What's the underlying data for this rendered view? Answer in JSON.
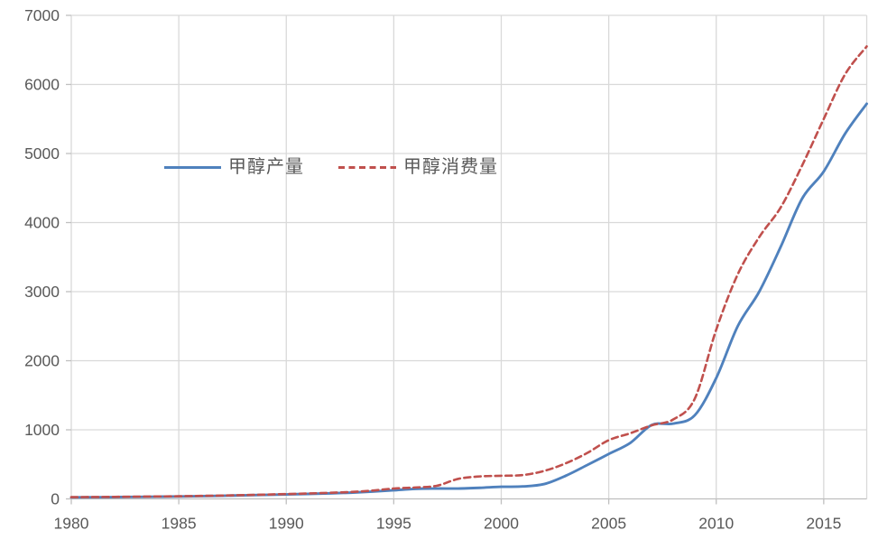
{
  "chart_data": {
    "type": "line",
    "title": "",
    "xlabel": "",
    "ylabel": "",
    "xlim": [
      1980,
      2017
    ],
    "ylim": [
      0,
      7000
    ],
    "grid": true,
    "legend_position": "inside-top-left",
    "x_tick_years": [
      1980,
      1985,
      1990,
      1995,
      2000,
      2005,
      2010,
      2015
    ],
    "x_tick_labels": [
      "1980",
      "1985",
      "1990",
      "1995",
      "2000",
      "2005",
      "2010",
      "2015"
    ],
    "y_ticks": [
      0,
      1000,
      2000,
      3000,
      4000,
      5000,
      6000,
      7000
    ],
    "y_tick_labels": [
      "0",
      "1000",
      "2000",
      "3000",
      "4000",
      "5000",
      "6000",
      "7000"
    ],
    "x": [
      1980,
      1981,
      1982,
      1983,
      1984,
      1985,
      1986,
      1987,
      1988,
      1989,
      1990,
      1991,
      1992,
      1993,
      1994,
      1995,
      1996,
      1997,
      1998,
      1999,
      2000,
      2001,
      2002,
      2003,
      2004,
      2005,
      2006,
      2007,
      2008,
      2009,
      2010,
      2011,
      2012,
      2013,
      2014,
      2015,
      2016,
      2017
    ],
    "series": [
      {
        "key": "production",
        "name": "甲醇产量",
        "color": "#4F81BD",
        "style": "solid",
        "values": [
          22,
          24,
          26,
          29,
          32,
          35,
          40,
          45,
          52,
          58,
          65,
          72,
          80,
          90,
          105,
          125,
          145,
          150,
          150,
          160,
          175,
          180,
          215,
          335,
          490,
          650,
          810,
          1070,
          1090,
          1210,
          1750,
          2500,
          3000,
          3650,
          4350,
          4740,
          5290,
          5720
        ]
      },
      {
        "key": "consumption",
        "name": "甲醇消费量",
        "color": "#C0504D",
        "style": "dashed",
        "values": [
          25,
          27,
          29,
          32,
          35,
          38,
          43,
          48,
          55,
          62,
          70,
          78,
          88,
          100,
          120,
          150,
          165,
          190,
          290,
          325,
          335,
          345,
          405,
          515,
          665,
          850,
          950,
          1065,
          1150,
          1450,
          2450,
          3250,
          3790,
          4220,
          4830,
          5500,
          6150,
          6550
        ]
      }
    ],
    "colors": {
      "grid": "#D9D9D9",
      "axis": "#BFBFBF",
      "tick_text": "#595959"
    }
  }
}
